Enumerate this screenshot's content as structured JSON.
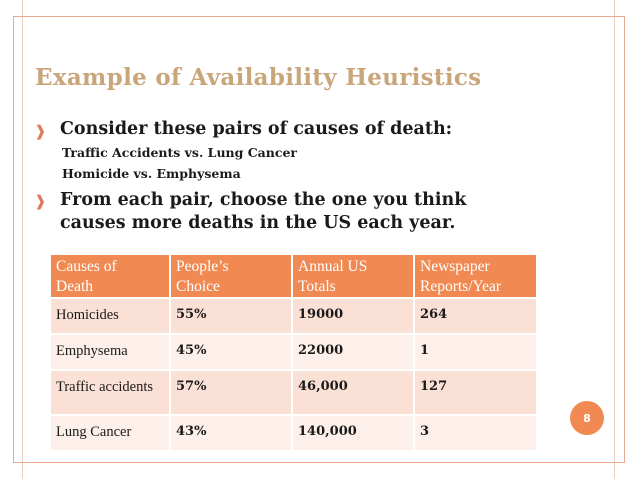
{
  "title": "Example of Availability Heuristics",
  "bullets": [
    {
      "text": "Consider these pairs of causes of death:",
      "sub": [
        "Traffic Accidents  vs. Lung Cancer",
        "Homicide  vs. Emphysema"
      ]
    },
    {
      "lines": [
        "From each pair, choose the one you think",
        "causes more deaths in the US each year."
      ]
    }
  ],
  "bullet_icon": "arrow-bullet-icon",
  "table": {
    "headers": [
      [
        "Causes of",
        "Death"
      ],
      [
        "People’s",
        "Choice"
      ],
      [
        "Annual US",
        "Totals"
      ],
      [
        "Newspaper",
        "Reports/Year"
      ]
    ],
    "rows": [
      [
        "Homicides",
        "55%",
        "19000",
        "264"
      ],
      [
        "Emphysema",
        "45%",
        "22000",
        "1"
      ],
      [
        "Traffic accidents",
        "57%",
        "46,000",
        "127"
      ],
      [
        "Lung Cancer",
        "43%",
        "140,000",
        "3"
      ]
    ]
  },
  "page_number": "8",
  "colors": {
    "title": "#c9a57a",
    "accent": "#f08a52",
    "row_dark": "#fbe0d6",
    "row_light": "#fdf0ea"
  }
}
